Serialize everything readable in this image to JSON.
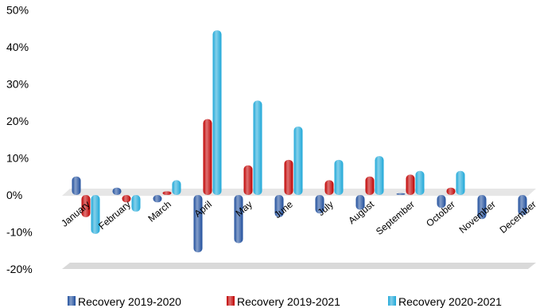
{
  "chart_data": {
    "type": "bar",
    "categories": [
      "January",
      "February",
      "March",
      "April",
      "May",
      "June",
      "July",
      "August",
      "September",
      "October",
      "November",
      "December"
    ],
    "series": [
      {
        "name": "Recovery 2019-2020",
        "color": "#1f4e9c",
        "values": [
          5.0,
          2.0,
          -2.0,
          -15.5,
          -13.0,
          -6.0,
          -5.0,
          -4.0,
          0.5,
          -3.5,
          -6.5,
          -5.5
        ]
      },
      {
        "name": "Recovery 2019-2021",
        "color": "#c00000",
        "values": [
          -6.0,
          -2.0,
          1.0,
          20.5,
          8.0,
          9.5,
          4.0,
          5.0,
          5.5,
          2.0,
          null,
          null
        ]
      },
      {
        "name": "Recovery 2020-2021",
        "color": "#1fa8d8",
        "values": [
          -10.5,
          -4.5,
          4.0,
          44.5,
          25.5,
          18.5,
          9.5,
          10.5,
          6.5,
          6.5,
          null,
          null
        ]
      }
    ],
    "yticks": [
      "50%",
      "40%",
      "30%",
      "20%",
      "10%",
      "0%",
      "-10%",
      "-20%"
    ],
    "ylim": [
      -20,
      50
    ],
    "grid": false,
    "legend_position": "bottom"
  }
}
